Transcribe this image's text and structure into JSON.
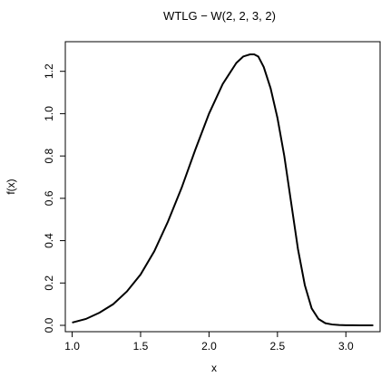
{
  "chart_data": {
    "type": "line",
    "title": "WTLG − W(2, 2, 3, 2)",
    "xlabel": "x",
    "ylabel": "f(x)",
    "xlim": [
      0.95,
      3.25
    ],
    "ylim": [
      -0.03,
      1.34
    ],
    "xticks": [
      1.0,
      1.5,
      2.0,
      2.5,
      3.0
    ],
    "xtick_labels": [
      "1.0",
      "1.5",
      "2.0",
      "2.5",
      "3.0"
    ],
    "yticks": [
      0.0,
      0.2,
      0.4,
      0.6,
      0.8,
      1.0,
      1.2
    ],
    "ytick_labels": [
      "0.0",
      "0.2",
      "0.4",
      "0.6",
      "0.8",
      "1.0",
      "1.2"
    ],
    "grid": false,
    "series": [
      {
        "x": [
          1.0,
          1.1,
          1.2,
          1.3,
          1.4,
          1.5,
          1.6,
          1.7,
          1.8,
          1.9,
          2.0,
          2.1,
          2.2,
          2.25,
          2.3,
          2.33,
          2.36,
          2.4,
          2.45,
          2.5,
          2.55,
          2.6,
          2.65,
          2.7,
          2.75,
          2.8,
          2.85,
          2.9,
          2.95,
          3.0,
          3.05,
          3.1,
          3.2
        ],
        "y": [
          0.013,
          0.03,
          0.06,
          0.1,
          0.16,
          0.24,
          0.35,
          0.49,
          0.65,
          0.83,
          1.0,
          1.14,
          1.24,
          1.27,
          1.28,
          1.28,
          1.27,
          1.22,
          1.12,
          0.98,
          0.8,
          0.58,
          0.36,
          0.19,
          0.08,
          0.03,
          0.01,
          0.004,
          0.0015,
          0.0007,
          0.0003,
          0.0001,
          0.0
        ]
      }
    ]
  }
}
